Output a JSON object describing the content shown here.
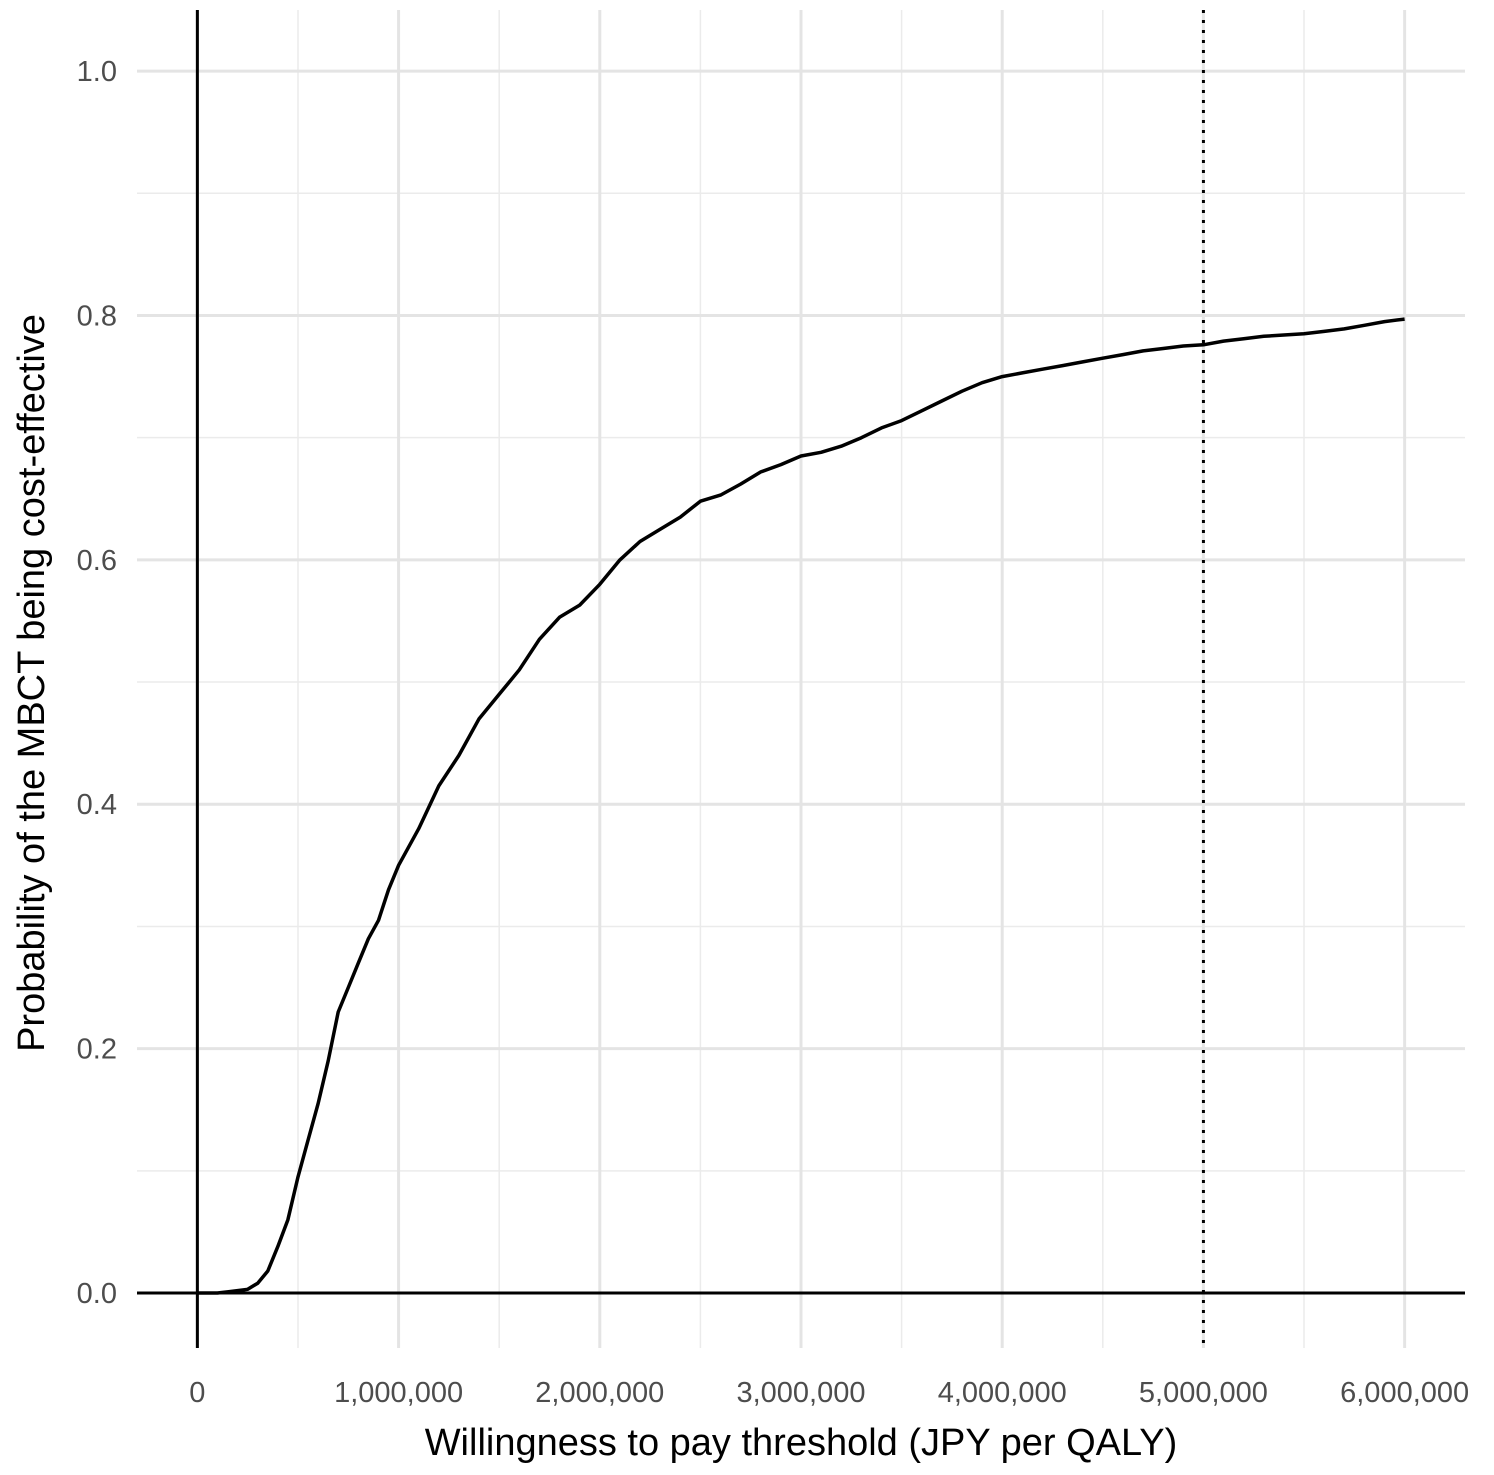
{
  "chart_data": {
    "type": "line",
    "title": "",
    "xlabel": "Willingness to pay threshold (JPY per QALY)",
    "ylabel": "Probability of the MBCT being cost-effective",
    "xlim": [
      -300000,
      6300000
    ],
    "ylim": [
      -0.045,
      1.05
    ],
    "x_ticks": [
      0,
      1000000,
      2000000,
      3000000,
      4000000,
      5000000,
      6000000
    ],
    "x_tick_labels": [
      "0",
      "1,000,000",
      "2,000,000",
      "3,000,000",
      "4,000,000",
      "5,000,000",
      "6,000,000"
    ],
    "y_ticks": [
      0,
      0.2,
      0.4,
      0.6,
      0.8,
      1.0
    ],
    "y_tick_labels": [
      "0.0",
      "0.2",
      "0.4",
      "0.6",
      "0.8",
      "1.0"
    ],
    "grid": true,
    "reference_lines": {
      "vertical_solid": 0,
      "horizontal_solid": 0,
      "vertical_dotted": 5000000
    },
    "series": [
      {
        "x": [
          0,
          100000,
          150000,
          200000,
          250000,
          300000,
          350000,
          400000,
          450000,
          500000,
          550000,
          600000,
          650000,
          700000,
          750000,
          800000,
          850000,
          900000,
          950000,
          1000000,
          1100000,
          1200000,
          1300000,
          1400000,
          1500000,
          1600000,
          1700000,
          1800000,
          1900000,
          2000000,
          2100000,
          2200000,
          2300000,
          2400000,
          2500000,
          2600000,
          2700000,
          2800000,
          2900000,
          3000000,
          3100000,
          3200000,
          3300000,
          3400000,
          3500000,
          3600000,
          3700000,
          3800000,
          3900000,
          4000000,
          4100000,
          4200000,
          4300000,
          4400000,
          4500000,
          4600000,
          4700000,
          4800000,
          4900000,
          5000000,
          5100000,
          5200000,
          5300000,
          5400000,
          5500000,
          5600000,
          5700000,
          5800000,
          5900000,
          6000000
        ],
        "y": [
          0,
          0,
          0.001,
          0.002,
          0.003,
          0.008,
          0.018,
          0.038,
          0.06,
          0.095,
          0.125,
          0.155,
          0.19,
          0.23,
          0.25,
          0.27,
          0.29,
          0.305,
          0.33,
          0.35,
          0.38,
          0.415,
          0.44,
          0.47,
          0.49,
          0.51,
          0.535,
          0.553,
          0.563,
          0.58,
          0.6,
          0.615,
          0.625,
          0.635,
          0.648,
          0.653,
          0.662,
          0.672,
          0.678,
          0.685,
          0.688,
          0.693,
          0.7,
          0.708,
          0.714,
          0.722,
          0.73,
          0.738,
          0.745,
          0.75,
          0.753,
          0.756,
          0.759,
          0.762,
          0.765,
          0.768,
          0.771,
          0.773,
          0.775,
          0.776,
          0.779,
          0.781,
          0.783,
          0.784,
          0.785,
          0.787,
          0.789,
          0.792,
          0.795,
          0.797
        ]
      }
    ]
  }
}
